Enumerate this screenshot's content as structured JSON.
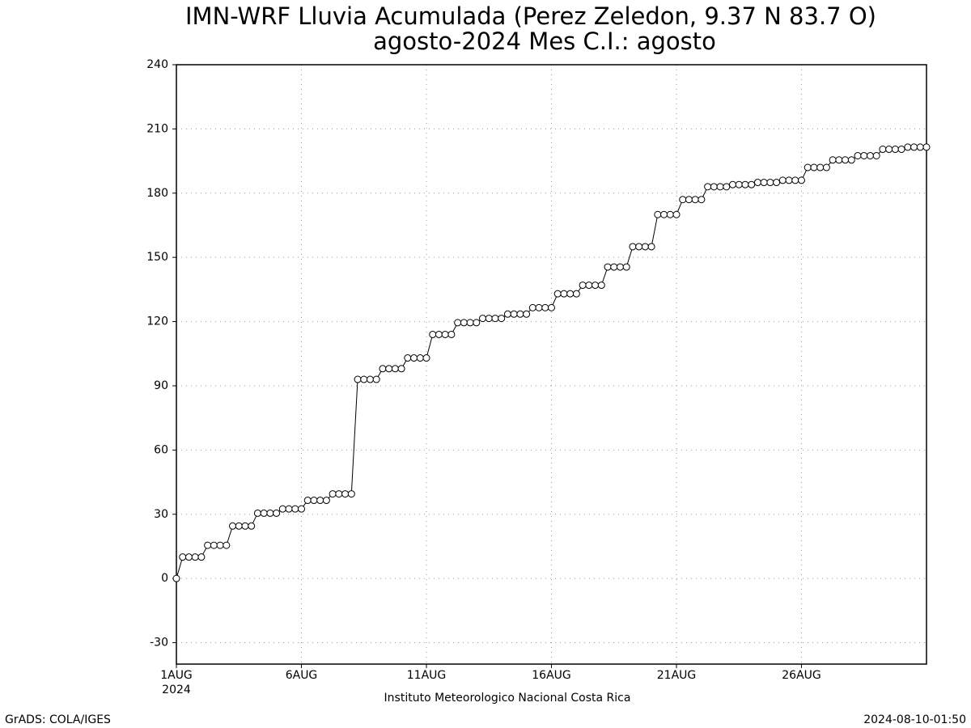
{
  "chart_data": {
    "type": "line",
    "title": "IMN-WRF  Lluvia Acumulada (Perez Zeledon, 9.37  N 83.7  O)",
    "subtitle": "agosto-2024 Mes C.I.: agosto",
    "x_year_label": "2024",
    "source_note": "Instituto Meteorologico Nacional Costa Rica",
    "software_note": "GrADS: COLA/IGES",
    "timestamp": "2024-08-10-01:50",
    "categories": [
      "1AUG",
      null,
      null,
      null,
      null,
      null,
      null,
      null,
      null,
      null,
      null,
      null,
      null,
      null,
      null,
      null,
      null,
      null,
      null,
      null,
      "6AUG",
      null,
      null,
      null,
      null,
      null,
      null,
      null,
      null,
      null,
      null,
      null,
      null,
      null,
      null,
      null,
      null,
      null,
      null,
      null,
      "11AUG",
      null,
      null,
      null,
      null,
      null,
      null,
      null,
      null,
      null,
      null,
      null,
      null,
      null,
      null,
      null,
      null,
      null,
      null,
      null,
      "16AUG",
      null,
      null,
      null,
      null,
      null,
      null,
      null,
      null,
      null,
      null,
      null,
      null,
      null,
      null,
      null,
      null,
      null,
      null,
      null,
      "21AUG",
      null,
      null,
      null,
      null,
      null,
      null,
      null,
      null,
      null,
      null,
      null,
      null,
      null,
      null,
      null,
      null,
      null,
      null,
      null,
      "26AUG",
      null,
      null,
      null,
      null,
      null,
      null,
      null,
      null,
      null,
      null,
      null,
      null,
      null,
      null,
      null,
      null,
      null,
      null,
      null,
      null
    ],
    "values": [
      0,
      10,
      10,
      10,
      10,
      15.5,
      15.5,
      15.5,
      15.5,
      24.5,
      24.5,
      24.5,
      24.5,
      30.5,
      30.5,
      30.5,
      30.5,
      32.5,
      32.5,
      32.5,
      32.5,
      36.5,
      36.5,
      36.5,
      36.5,
      39.5,
      39.5,
      39.5,
      39.5,
      93,
      93,
      93,
      93,
      98,
      98,
      98,
      98,
      103,
      103,
      103,
      103,
      114,
      114,
      114,
      114,
      119.5,
      119.5,
      119.5,
      119.5,
      121.5,
      121.5,
      121.5,
      121.5,
      123.5,
      123.5,
      123.5,
      123.5,
      126.5,
      126.5,
      126.5,
      126.5,
      133,
      133,
      133,
      133,
      137,
      137,
      137,
      137,
      145.5,
      145.5,
      145.5,
      145.5,
      155,
      155,
      155,
      155,
      170,
      170,
      170,
      170,
      177,
      177,
      177,
      177,
      183,
      183,
      183,
      183,
      184,
      184,
      184,
      184,
      185,
      185,
      185,
      185,
      186,
      186,
      186,
      186,
      192,
      192,
      192,
      192,
      195.5,
      195.5,
      195.5,
      195.5,
      197.5,
      197.5,
      197.5,
      197.5,
      200.5,
      200.5,
      200.5,
      200.5,
      201.5,
      201.5,
      201.5,
      201.5
    ],
    "color": "#000000",
    "ylim": [
      -40,
      240
    ],
    "yticks": [
      -30,
      0,
      30,
      60,
      90,
      120,
      150,
      180,
      210,
      240
    ],
    "grid": true
  }
}
